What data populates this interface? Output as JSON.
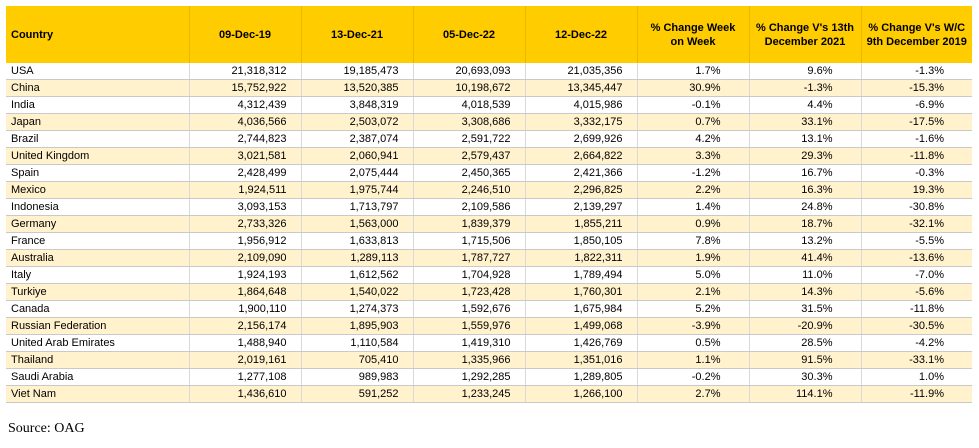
{
  "table": {
    "headers": {
      "country": "Country",
      "d1": "09-Dec-19",
      "d2": "13-Dec-21",
      "d3": "05-Dec-22",
      "d4": "12-Dec-22",
      "wow": "% Change Week on Week",
      "v21": "% Change V's 13th December 2021",
      "v19": "% Change V's W/C 9th December 2019"
    },
    "rows": [
      [
        "USA",
        "21,318,312",
        "19,185,473",
        "20,693,093",
        "21,035,356",
        "1.7%",
        "9.6%",
        "-1.3%"
      ],
      [
        "China",
        "15,752,922",
        "13,520,385",
        "10,198,672",
        "13,345,447",
        "30.9%",
        "-1.3%",
        "-15.3%"
      ],
      [
        "India",
        "4,312,439",
        "3,848,319",
        "4,018,539",
        "4,015,986",
        "-0.1%",
        "4.4%",
        "-6.9%"
      ],
      [
        "Japan",
        "4,036,566",
        "2,503,072",
        "3,308,686",
        "3,332,175",
        "0.7%",
        "33.1%",
        "-17.5%"
      ],
      [
        "Brazil",
        "2,744,823",
        "2,387,074",
        "2,591,722",
        "2,699,926",
        "4.2%",
        "13.1%",
        "-1.6%"
      ],
      [
        "United Kingdom",
        "3,021,581",
        "2,060,941",
        "2,579,437",
        "2,664,822",
        "3.3%",
        "29.3%",
        "-11.8%"
      ],
      [
        "Spain",
        "2,428,499",
        "2,075,444",
        "2,450,365",
        "2,421,366",
        "-1.2%",
        "16.7%",
        "-0.3%"
      ],
      [
        "Mexico",
        "1,924,511",
        "1,975,744",
        "2,246,510",
        "2,296,825",
        "2.2%",
        "16.3%",
        "19.3%"
      ],
      [
        "Indonesia",
        "3,093,153",
        "1,713,797",
        "2,109,586",
        "2,139,297",
        "1.4%",
        "24.8%",
        "-30.8%"
      ],
      [
        "Germany",
        "2,733,326",
        "1,563,000",
        "1,839,379",
        "1,855,211",
        "0.9%",
        "18.7%",
        "-32.1%"
      ],
      [
        "France",
        "1,956,912",
        "1,633,813",
        "1,715,506",
        "1,850,105",
        "7.8%",
        "13.2%",
        "-5.5%"
      ],
      [
        "Australia",
        "2,109,090",
        "1,289,113",
        "1,787,727",
        "1,822,311",
        "1.9%",
        "41.4%",
        "-13.6%"
      ],
      [
        "Italy",
        "1,924,193",
        "1,612,562",
        "1,704,928",
        "1,789,494",
        "5.0%",
        "11.0%",
        "-7.0%"
      ],
      [
        "Turkiye",
        "1,864,648",
        "1,540,022",
        "1,723,428",
        "1,760,301",
        "2.1%",
        "14.3%",
        "-5.6%"
      ],
      [
        "Canada",
        "1,900,110",
        "1,274,373",
        "1,592,676",
        "1,675,984",
        "5.2%",
        "31.5%",
        "-11.8%"
      ],
      [
        "Russian Federation",
        "2,156,174",
        "1,895,903",
        "1,559,976",
        "1,499,068",
        "-3.9%",
        "-20.9%",
        "-30.5%"
      ],
      [
        "United Arab Emirates",
        "1,488,940",
        "1,110,584",
        "1,419,310",
        "1,426,769",
        "0.5%",
        "28.5%",
        "-4.2%"
      ],
      [
        "Thailand",
        "2,019,161",
        "705,410",
        "1,335,966",
        "1,351,016",
        "1.1%",
        "91.5%",
        "-33.1%"
      ],
      [
        "Saudi Arabia",
        "1,277,108",
        "989,983",
        "1,292,285",
        "1,289,805",
        "-0.2%",
        "30.3%",
        "1.0%"
      ],
      [
        "Viet Nam",
        "1,436,610",
        "591,252",
        "1,233,245",
        "1,266,100",
        "2.7%",
        "114.1%",
        "-11.9%"
      ]
    ]
  },
  "source": "Source: OAG",
  "colors": {
    "header_bg": "#ffcc00",
    "stripe_bg": "#fff2cc"
  }
}
